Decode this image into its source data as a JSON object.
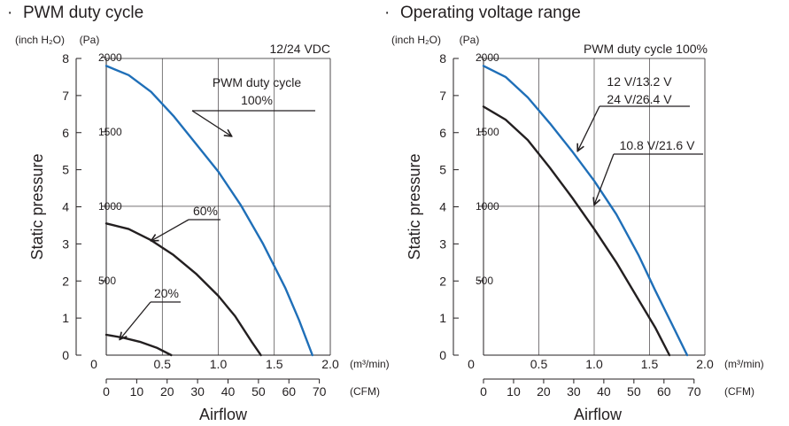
{
  "chart_data": [
    {
      "type": "line",
      "title": "PWM duty cycle",
      "subtitle": "12/24 VDC",
      "xlabel": "Airflow",
      "ylabel": "Static pressure",
      "x_unit_primary": "(m³/min)",
      "x_unit_secondary": "(CFM)",
      "y_unit_primary": "(inch H₂O)",
      "y_unit_secondary": "(Pa)",
      "xlim": [
        0,
        2.0
      ],
      "ylim": [
        0,
        8
      ],
      "x_ticks": [
        "0",
        "0.5",
        "1.0",
        "1.5",
        "2.0"
      ],
      "x_ticks_secondary": [
        "0",
        "10",
        "20",
        "30",
        "40",
        "50",
        "60",
        "70"
      ],
      "y_ticks": [
        "0",
        "1",
        "2",
        "3",
        "4",
        "5",
        "6",
        "7",
        "8"
      ],
      "y_ticks_secondary": [
        "500",
        "1000",
        "1500",
        "2000"
      ],
      "grid": true,
      "series": [
        {
          "name": "100%",
          "label_lines": [
            "PWM duty cycle",
            "100%"
          ],
          "color": "#1f6fb8",
          "x": [
            0,
            0.2,
            0.4,
            0.6,
            0.8,
            1.0,
            1.2,
            1.4,
            1.6,
            1.72,
            1.84
          ],
          "y": [
            7.8,
            7.55,
            7.1,
            6.45,
            5.7,
            4.95,
            4.05,
            3.0,
            1.8,
            0.95,
            0
          ]
        },
        {
          "name": "60%",
          "label_lines": [
            "60%"
          ],
          "color": "#231f20",
          "x": [
            0,
            0.2,
            0.4,
            0.6,
            0.8,
            1.0,
            1.15,
            1.3,
            1.38
          ],
          "y": [
            3.55,
            3.4,
            3.1,
            2.7,
            2.2,
            1.6,
            1.05,
            0.35,
            0
          ]
        },
        {
          "name": "20%",
          "label_lines": [
            "20%"
          ],
          "color": "#231f20",
          "x": [
            0,
            0.15,
            0.3,
            0.45,
            0.58
          ],
          "y": [
            0.55,
            0.47,
            0.36,
            0.2,
            0
          ]
        }
      ]
    },
    {
      "type": "line",
      "title": "Operating voltage range",
      "subtitle": "PWM duty cycle 100%",
      "xlabel": "Airflow",
      "ylabel": "Static pressure",
      "x_unit_primary": "(m³/min)",
      "x_unit_secondary": "(CFM)",
      "y_unit_primary": "(inch H₂O)",
      "y_unit_secondary": "(Pa)",
      "xlim": [
        0,
        2.0
      ],
      "ylim": [
        0,
        8
      ],
      "x_ticks": [
        "0",
        "0.5",
        "1.0",
        "1.5",
        "2.0"
      ],
      "x_ticks_secondary": [
        "0",
        "10",
        "20",
        "30",
        "40",
        "50",
        "60",
        "70"
      ],
      "y_ticks": [
        "0",
        "1",
        "2",
        "3",
        "4",
        "5",
        "6",
        "7",
        "8"
      ],
      "y_ticks_secondary": [
        "500",
        "1000",
        "1500",
        "2000"
      ],
      "grid": true,
      "series": [
        {
          "name": "12 V/13.2 V 24 V/26.4 V",
          "label_lines": [
            "12 V/13.2 V",
            "24 V/26.4 V"
          ],
          "color": "#1f6fb8",
          "x": [
            0,
            0.2,
            0.4,
            0.6,
            0.8,
            1.0,
            1.2,
            1.4,
            1.55,
            1.7,
            1.84
          ],
          "y": [
            7.8,
            7.5,
            6.95,
            6.25,
            5.5,
            4.7,
            3.8,
            2.7,
            1.75,
            0.85,
            0
          ]
        },
        {
          "name": "10.8 V/21.6 V",
          "label_lines": [
            "10.8 V/21.6 V"
          ],
          "color": "#231f20",
          "x": [
            0,
            0.2,
            0.4,
            0.6,
            0.8,
            1.0,
            1.2,
            1.4,
            1.55,
            1.68
          ],
          "y": [
            6.7,
            6.35,
            5.8,
            5.05,
            4.25,
            3.4,
            2.5,
            1.5,
            0.75,
            0
          ]
        }
      ]
    }
  ]
}
